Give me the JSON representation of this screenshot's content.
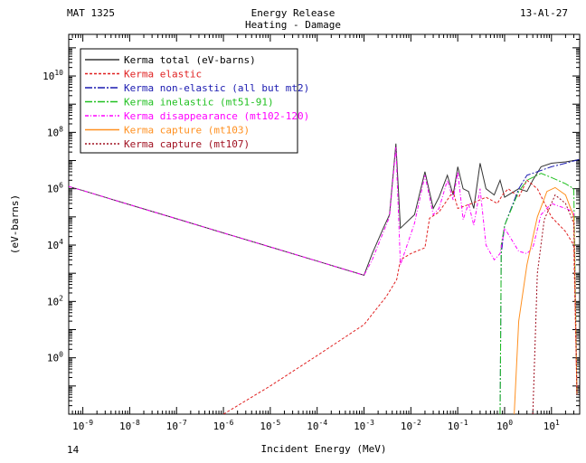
{
  "header": {
    "mat": "MAT 1325",
    "title_line1": "Energy Release",
    "title_line2": "Heating - Damage",
    "eval_id": "13-Al-27",
    "page_number": "14"
  },
  "chart_data": {
    "type": "line",
    "xlabel": "Incident Energy (MeV)",
    "ylabel": "(eV-barns)",
    "xscale": "log",
    "yscale": "log",
    "xlim": [
      5e-10,
      40
    ],
    "ylim": [
      0.01,
      300000000000.0
    ],
    "x_tick_exponents": [
      -9,
      -8,
      -7,
      -6,
      -5,
      -4,
      -3,
      -2,
      -1,
      0,
      1
    ],
    "y_tick_exponents": [
      0,
      2,
      4,
      6,
      8,
      10
    ],
    "legend_position": "top-left",
    "grid": false,
    "series": [
      {
        "name": "Kerma total",
        "unit_note": "(eV-barns)",
        "color": "#333333",
        "dash": "",
        "points": [
          [
            5e-10,
            1200000.0
          ],
          [
            1e-09,
            860000.0
          ],
          [
            1e-08,
            270000.0
          ],
          [
            1e-07,
            86000.0
          ],
          [
            1e-06,
            27000.0
          ],
          [
            1e-05,
            8600.0
          ],
          [
            0.0001,
            2700.0
          ],
          [
            0.001,
            850
          ],
          [
            0.0015,
            5000.0
          ],
          [
            0.0025,
            35000.0
          ],
          [
            0.0035,
            120000.0
          ],
          [
            0.0048,
            40000000.0
          ],
          [
            0.006,
            40000.0
          ],
          [
            0.012,
            120000.0
          ],
          [
            0.02,
            4000000.0
          ],
          [
            0.03,
            200000.0
          ],
          [
            0.04,
            500000.0
          ],
          [
            0.06,
            3000000.0
          ],
          [
            0.08,
            600000.0
          ],
          [
            0.1,
            6000000.0
          ],
          [
            0.13,
            1000000.0
          ],
          [
            0.17,
            800000.0
          ],
          [
            0.22,
            200000.0
          ],
          [
            0.3,
            8000000.0
          ],
          [
            0.4,
            1000000.0
          ],
          [
            0.6,
            600000.0
          ],
          [
            0.8,
            2000000.0
          ],
          [
            1,
            500000.0
          ],
          [
            2,
            1000000.0
          ],
          [
            3,
            800000.0
          ],
          [
            4,
            2000000.0
          ],
          [
            6,
            6000000.0
          ],
          [
            10,
            8000000.0
          ],
          [
            20,
            9000000.0
          ],
          [
            30,
            10000000.0
          ],
          [
            40,
            11000000.0
          ]
        ]
      },
      {
        "name": "Kerma elastic",
        "color": "#e02020",
        "dash": "3,2",
        "points": [
          [
            1e-06,
            0.01
          ],
          [
            1e-05,
            0.1
          ],
          [
            0.0001,
            1.2
          ],
          [
            0.001,
            15
          ],
          [
            0.003,
            150
          ],
          [
            0.005,
            600
          ],
          [
            0.006,
            3000.0
          ],
          [
            0.01,
            5000.0
          ],
          [
            0.02,
            8000.0
          ],
          [
            0.025,
            90000.0
          ],
          [
            0.04,
            150000.0
          ],
          [
            0.08,
            800000.0
          ],
          [
            0.1,
            200000.0
          ],
          [
            0.2,
            300000.0
          ],
          [
            0.4,
            500000.0
          ],
          [
            0.7,
            300000.0
          ],
          [
            0.9,
            600000.0
          ],
          [
            1.2,
            1000000.0
          ],
          [
            2,
            500000.0
          ],
          [
            3,
            2000000.0
          ],
          [
            5,
            1000000.0
          ],
          [
            10,
            100000.0
          ],
          [
            20,
            30000.0
          ],
          [
            30,
            10000.0
          ],
          [
            35,
            0.05
          ]
        ]
      },
      {
        "name": "Kerma non-elastic",
        "detail": "(all but mt2)",
        "color": "#1a1ab0",
        "dash": "8,2,2,2",
        "points": [
          [
            0.8,
            0.01
          ],
          [
            0.85,
            5000.0
          ],
          [
            1,
            50000.0
          ],
          [
            2,
            1000000.0
          ],
          [
            3,
            3000000.0
          ],
          [
            5,
            4000000.0
          ],
          [
            10,
            6000000.0
          ],
          [
            20,
            8000000.0
          ],
          [
            40,
            11000000.0
          ]
        ]
      },
      {
        "name": "Kerma inelastic",
        "detail": "(mt51-91)",
        "color": "#20c020",
        "dash": "8,2,2,2",
        "points": [
          [
            0.8,
            0.01
          ],
          [
            0.85,
            10000.0
          ],
          [
            1,
            50000.0
          ],
          [
            2,
            800000.0
          ],
          [
            3,
            2000000.0
          ],
          [
            6,
            3500000.0
          ],
          [
            10,
            2500000.0
          ],
          [
            20,
            1500000.0
          ],
          [
            30,
            1000000.0
          ],
          [
            35,
            0.05
          ]
        ]
      },
      {
        "name": "Kerma disappearance",
        "detail": "(mt102-120)",
        "color": "#ff00ff",
        "dash": "4,2,1,2",
        "points": [
          [
            5e-10,
            1200000.0
          ],
          [
            1e-09,
            860000.0
          ],
          [
            1e-08,
            270000.0
          ],
          [
            1e-07,
            86000.0
          ],
          [
            1e-06,
            27000.0
          ],
          [
            1e-05,
            8600.0
          ],
          [
            0.0001,
            2700.0
          ],
          [
            0.001,
            850
          ],
          [
            0.0015,
            3000.0
          ],
          [
            0.0025,
            25000.0
          ],
          [
            0.0035,
            100000.0
          ],
          [
            0.0048,
            30000000.0
          ],
          [
            0.006,
            2000.0
          ],
          [
            0.012,
            60000.0
          ],
          [
            0.02,
            3000000.0
          ],
          [
            0.03,
            120000.0
          ],
          [
            0.04,
            200000.0
          ],
          [
            0.06,
            2000000.0
          ],
          [
            0.08,
            400000.0
          ],
          [
            0.1,
            4000000.0
          ],
          [
            0.13,
            80000.0
          ],
          [
            0.17,
            300000.0
          ],
          [
            0.22,
            50000.0
          ],
          [
            0.3,
            1000000.0
          ],
          [
            0.4,
            10000.0
          ],
          [
            0.6,
            3000.0
          ],
          [
            0.8,
            5000.0
          ],
          [
            1,
            40000.0
          ],
          [
            2,
            6000.0
          ],
          [
            3,
            5000.0
          ],
          [
            4,
            8000.0
          ],
          [
            6,
            120000.0
          ],
          [
            10,
            300000.0
          ],
          [
            20,
            200000.0
          ],
          [
            30,
            150000.0
          ],
          [
            35,
            0.05
          ]
        ]
      },
      {
        "name": "Kerma capture",
        "detail": "(mt103)",
        "color": "#ff9020",
        "dash": "",
        "points": [
          [
            1.6,
            0.01
          ],
          [
            2,
            20
          ],
          [
            3,
            2000.0
          ],
          [
            5,
            100000.0
          ],
          [
            8,
            800000.0
          ],
          [
            12,
            1100000.0
          ],
          [
            20,
            600000.0
          ],
          [
            30,
            100000.0
          ],
          [
            35,
            0.05
          ]
        ]
      },
      {
        "name": "Kerma capture",
        "detail": "(mt107)",
        "color": "#a01020",
        "dash": "2,2",
        "points": [
          [
            4,
            0.01
          ],
          [
            5,
            1000.0
          ],
          [
            7,
            80000.0
          ],
          [
            12,
            600000.0
          ],
          [
            20,
            300000.0
          ],
          [
            30,
            60000.0
          ],
          [
            35,
            0.05
          ]
        ]
      }
    ]
  }
}
